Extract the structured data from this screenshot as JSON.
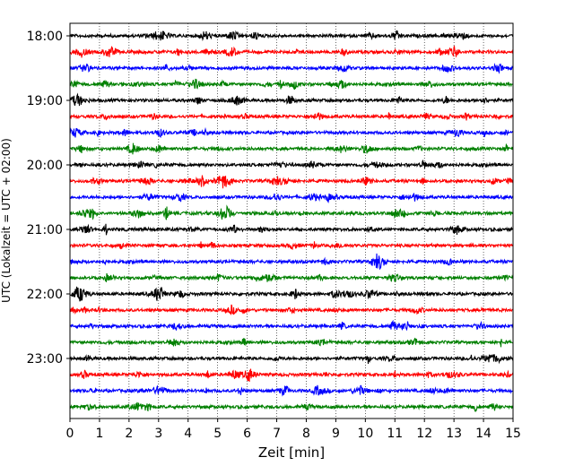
{
  "chart_data": {
    "type": "line",
    "title": "",
    "xlabel": "Zeit  [min]",
    "ylabel": "UTC (Lokalzeit = UTC + 02:00)",
    "xlim": [
      0,
      15
    ],
    "x_ticks": [
      "0",
      "1",
      "2",
      "3",
      "4",
      "5",
      "6",
      "7",
      "8",
      "9",
      "10",
      "11",
      "12",
      "13",
      "14",
      "15"
    ],
    "y_tick_labels": [
      "18:00",
      "19:00",
      "20:00",
      "21:00",
      "22:00",
      "23:00"
    ],
    "grid": "vertical dotted lines at each minute",
    "trace_colors": [
      "#000000",
      "#ff0000",
      "#0000ff",
      "#008000"
    ],
    "traces": [
      {
        "start": "18:00"
      },
      {
        "start": "18:15"
      },
      {
        "start": "18:30"
      },
      {
        "start": "18:45"
      },
      {
        "start": "19:00"
      },
      {
        "start": "19:15"
      },
      {
        "start": "19:30"
      },
      {
        "start": "19:45"
      },
      {
        "start": "20:00"
      },
      {
        "start": "20:15"
      },
      {
        "start": "20:30"
      },
      {
        "start": "20:45"
      },
      {
        "start": "21:00"
      },
      {
        "start": "21:15"
      },
      {
        "start": "21:30"
      },
      {
        "start": "21:45"
      },
      {
        "start": "22:00"
      },
      {
        "start": "22:15"
      },
      {
        "start": "22:30"
      },
      {
        "start": "22:45"
      },
      {
        "start": "23:00"
      },
      {
        "start": "23:15"
      },
      {
        "start": "23:30"
      },
      {
        "start": "23:45"
      }
    ]
  }
}
